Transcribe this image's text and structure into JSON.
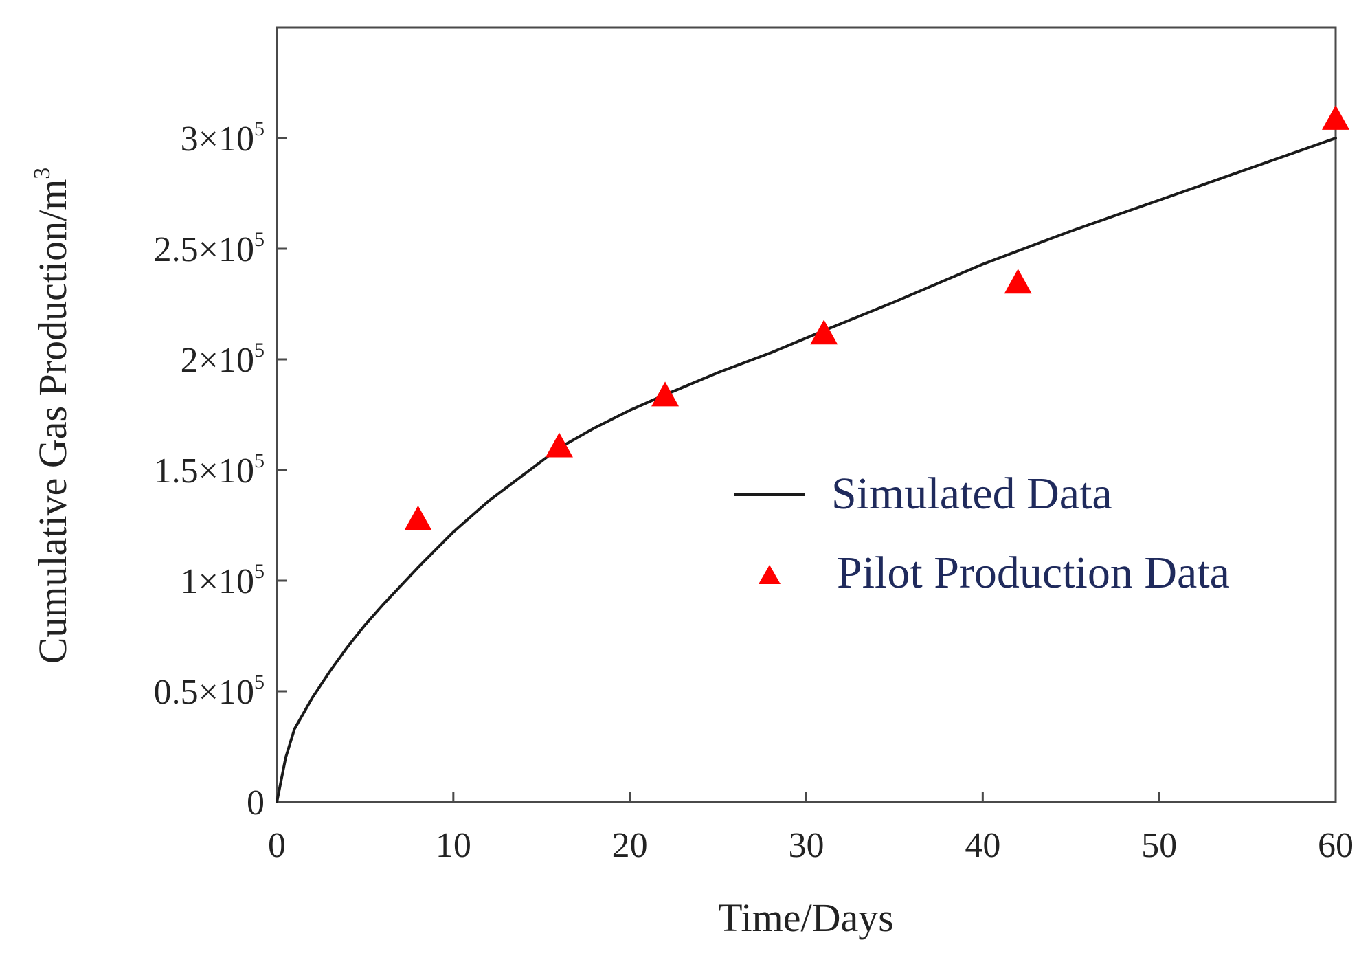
{
  "chart_data": {
    "type": "line",
    "title": "",
    "xlabel": "Time/Days",
    "ylabel_text": "Cumulative Gas Production/m",
    "ylabel_superscript": "3",
    "xlim": [
      0,
      60
    ],
    "ylim": [
      0,
      350000
    ],
    "xticks": [
      {
        "value": 0,
        "label": "0"
      },
      {
        "value": 10,
        "label": "10"
      },
      {
        "value": 20,
        "label": "20"
      },
      {
        "value": 30,
        "label": "30"
      },
      {
        "value": 40,
        "label": "40"
      },
      {
        "value": 50,
        "label": "50"
      },
      {
        "value": 60,
        "label": "60"
      }
    ],
    "yticks": [
      {
        "value": 0,
        "mantissa": "0",
        "exponent": ""
      },
      {
        "value": 50000,
        "mantissa": "0.5×10",
        "exponent": "5"
      },
      {
        "value": 100000,
        "mantissa": "1×10",
        "exponent": "5"
      },
      {
        "value": 150000,
        "mantissa": "1.5×10",
        "exponent": "5"
      },
      {
        "value": 200000,
        "mantissa": "2×10",
        "exponent": "5"
      },
      {
        "value": 250000,
        "mantissa": "2.5×10",
        "exponent": "5"
      },
      {
        "value": 300000,
        "mantissa": "3×10",
        "exponent": "5"
      }
    ],
    "grid": false,
    "legend_position": "center-right",
    "series": [
      {
        "name": "Simulated Data",
        "kind": "line",
        "color": "#1a1a1a",
        "x": [
          0,
          0.5,
          1,
          2,
          3,
          4,
          5,
          6,
          8,
          10,
          12,
          14,
          16,
          18,
          20,
          22,
          25,
          28,
          31,
          35,
          40,
          45,
          50,
          55,
          60
        ],
        "y": [
          0,
          20000,
          33000,
          47000,
          59000,
          70000,
          80000,
          89000,
          106000,
          122000,
          136000,
          148000,
          160000,
          169000,
          177000,
          184000,
          194000,
          203000,
          213000,
          226000,
          243000,
          258000,
          272000,
          286000,
          300000
        ]
      },
      {
        "name": "Pilot Production Data",
        "kind": "scatter",
        "marker": "triangle",
        "color": "#ff0000",
        "x": [
          8,
          16,
          22,
          31,
          42,
          60
        ],
        "y": [
          127000,
          160000,
          183000,
          211000,
          234000,
          308000
        ]
      }
    ],
    "legend_text_color": "#1f2a5c"
  }
}
